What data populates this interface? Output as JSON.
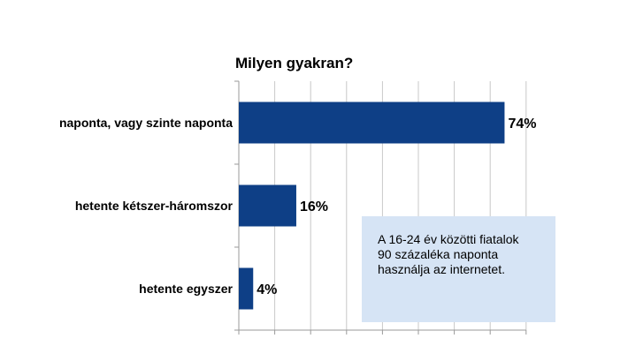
{
  "chart_data": {
    "type": "bar",
    "orientation": "horizontal",
    "title": "Milyen gyakran?",
    "xlabel": "",
    "ylabel": "",
    "categories": [
      "naponta, vagy szinte naponta",
      "hetente kétszer-háromszor",
      "hetente egyszer"
    ],
    "values": [
      74,
      16,
      4
    ],
    "value_labels": [
      "74%",
      "16%",
      "4%"
    ],
    "xlim": [
      0,
      80
    ],
    "grid": true,
    "legend": "none",
    "colors": {
      "bar": "#0e3f86",
      "grid": "#c8c8c8",
      "annotation_bg": "#d6e4f5"
    },
    "annotation": "A 16-24 év közötti fiatalok\n90 százaléka naponta\nhasználja az internetet."
  }
}
